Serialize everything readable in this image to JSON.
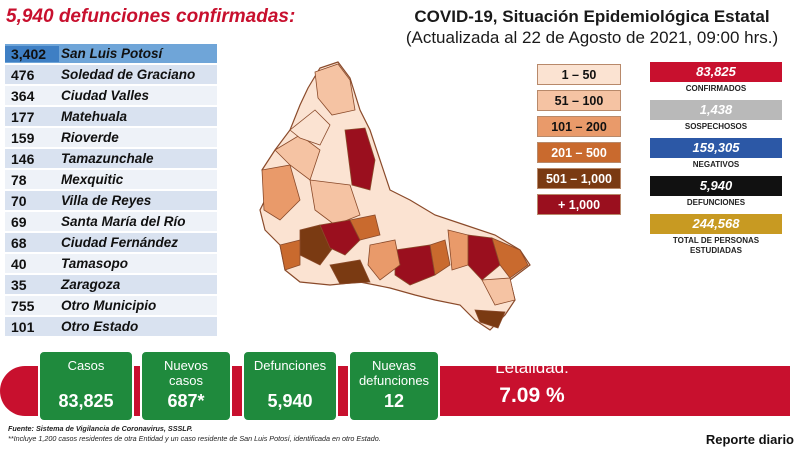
{
  "header": {
    "main_title": "5,940 defunciones confirmadas:",
    "report_title": "COVID-19, Situación Epidemiológica Estatal",
    "report_subtitle": "(Actualizada al 22 de Agosto de 2021, 09:00 hrs.)"
  },
  "municipalities": [
    {
      "count": "3,402",
      "name": "San Luis Potosí"
    },
    {
      "count": "476",
      "name": "Soledad de Graciano"
    },
    {
      "count": "364",
      "name": "Ciudad Valles"
    },
    {
      "count": "177",
      "name": "Matehuala"
    },
    {
      "count": "159",
      "name": "Rioverde"
    },
    {
      "count": "146",
      "name": "Tamazunchale"
    },
    {
      "count": "78",
      "name": "Mexquitic"
    },
    {
      "count": "70",
      "name": "Villa de Reyes"
    },
    {
      "count": "69",
      "name": "Santa María del Río"
    },
    {
      "count": "68",
      "name": "Ciudad Fernández"
    },
    {
      "count": "40",
      "name": "Tamasopo"
    },
    {
      "count": "35",
      "name": "Zaragoza"
    },
    {
      "count": "755",
      "name": "Otro Municipio"
    },
    {
      "count": "101",
      "name": "Otro Estado"
    }
  ],
  "legend": [
    {
      "label": "1 – 50",
      "color": "#fbe3d2",
      "text_color": "#111111"
    },
    {
      "label": "51 – 100",
      "color": "#f5c3a3",
      "text_color": "#111111"
    },
    {
      "label": "101 – 200",
      "color": "#e99a6a",
      "text_color": "#111111"
    },
    {
      "label": "201 – 500",
      "color": "#c96a2e",
      "text_color": "#ffffff"
    },
    {
      "label": "501 – 1,000",
      "color": "#7a3a12",
      "text_color": "#ffffff"
    },
    {
      "label": "+ 1,000",
      "color": "#9a0f1e",
      "text_color": "#ffffff"
    }
  ],
  "stats": [
    {
      "value": "83,825",
      "label": "CONFIRMADOS",
      "color": "#c8102e"
    },
    {
      "value": "1,438",
      "label": "SOSPECHOSOS",
      "color": "#b9b9b9"
    },
    {
      "value": "159,305",
      "label": "NEGATIVOS",
      "color": "#2c58a6"
    },
    {
      "value": "5,940",
      "label": "DEFUNCIONES",
      "color": "#111111"
    },
    {
      "value": "244,568",
      "label": "TOTAL DE PERSONAS ESTUDIADAS",
      "color": "#c89a22"
    }
  ],
  "summary": {
    "cases_label": "Casos",
    "cases_value": "83,825",
    "new_cases_label": "Nuevos casos",
    "new_cases_value": "687*",
    "deaths_label": "Defunciones",
    "deaths_value": "5,940",
    "new_deaths_label": "Nuevas defunciones",
    "new_deaths_value": "12",
    "lethality_label": "Letalidad:",
    "lethality_value": "7.09 %"
  },
  "footnotes": {
    "source": "Fuente: Sistema de Vigilancia de Coronavirus, SSSLP.",
    "note": "**Incluye 1,200 casos residentes de otra Entidad y un caso residente de San Luis Potosí, identificada en otro Estado."
  },
  "daily_report": "Reporte diario"
}
